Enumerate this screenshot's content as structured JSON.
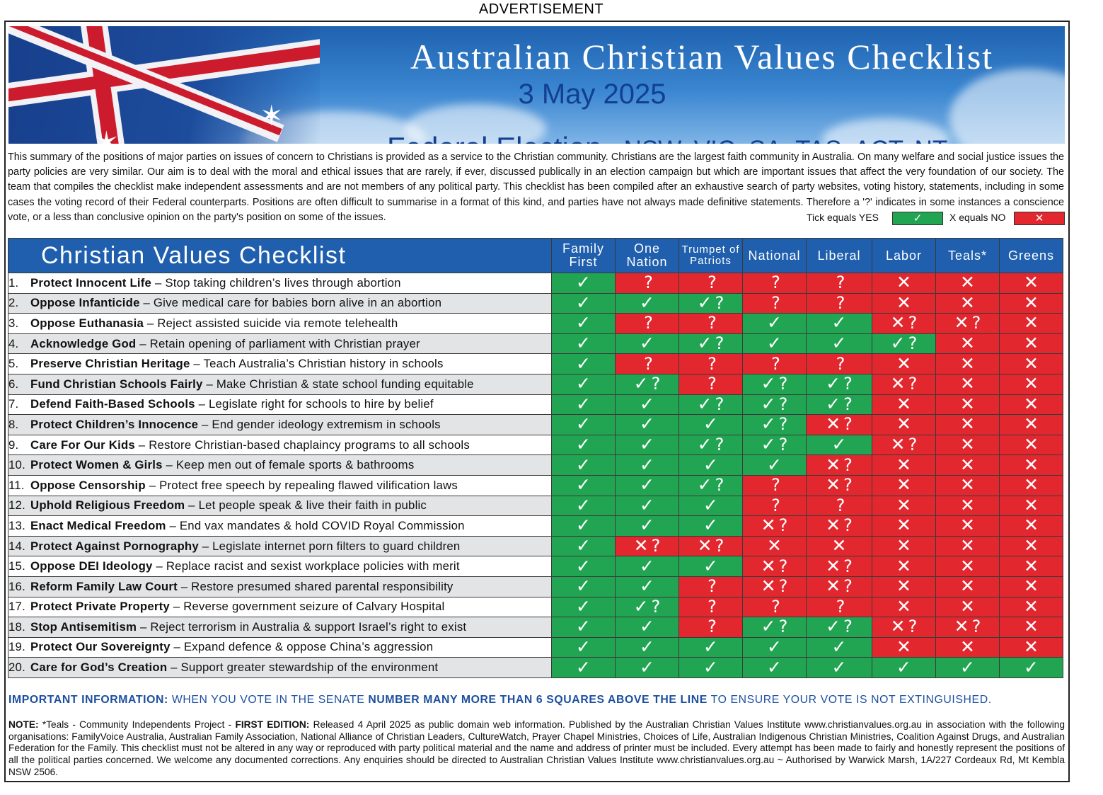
{
  "ad_label": "ADVERTISEMENT",
  "banner": {
    "title": "Australian Christian Values Checklist",
    "date": "3 May 2025",
    "election": "Federal Election",
    "regions": " - NSW, VIC, SA, TAS, ACT, NT"
  },
  "intro": "This summary of the positions of major parties on issues of concern to Christians is provided as a service to the Christian community. Christians are the largest faith community in Australia. On many welfare and social justice issues the party policies are very similar. Our aim is to deal with the moral and ethical issues that are rarely, if ever, discussed publically in an election campaign but which are important issues that affect the very foundation of our society. The team that compiles the checklist make independent assessments and are not members of any political party. This checklist has been compiled after an exhaustive search of party websites, voting history, statements, including in some cases the voting record of their Federal counterparts. Positions are often difficult to summarise in a format of this kind, and parties have not always made definitive statements. Therefore a '?' indicates in some instances a conscience vote, or a less than conclusive opinion on the party's position on some of the issues.",
  "legend": {
    "yes_label": "Tick equals YES",
    "yes_symbol": "✓",
    "no_label": "X equals NO",
    "no_symbol": "✕"
  },
  "table": {
    "title": "Christian Values Checklist",
    "parties": [
      {
        "line1": "Family",
        "line2": "First"
      },
      {
        "line1": "One",
        "line2": "Nation"
      },
      {
        "line1": "Trumpet of",
        "line2": "Patriots"
      },
      {
        "line1": "National",
        "line2": ""
      },
      {
        "line1": "Liberal",
        "line2": ""
      },
      {
        "line1": "Labor",
        "line2": ""
      },
      {
        "line1": "Teals*",
        "line2": ""
      },
      {
        "line1": "Greens",
        "line2": ""
      }
    ],
    "rows": [
      {
        "num": "1.",
        "title": "Protect Innocent Life",
        "desc": " – Stop taking children’s lives through abortion",
        "marks": [
          "Y",
          "?",
          "?",
          "?",
          "?",
          "N",
          "N",
          "N"
        ]
      },
      {
        "num": "2.",
        "title": "Oppose Infanticide",
        "desc": " – Give medical care for babies born alive in an abortion",
        "marks": [
          "Y",
          "Y",
          "Y?",
          "?",
          "?",
          "N",
          "N",
          "N"
        ]
      },
      {
        "num": "3.",
        "title": "Oppose Euthanasia",
        "desc": " – Reject assisted suicide via remote telehealth",
        "marks": [
          "Y",
          "?",
          "?",
          "Y",
          "Y",
          "N?",
          "N?",
          "N"
        ]
      },
      {
        "num": "4.",
        "title": "Acknowledge God",
        "desc": " – Retain opening of parliament with Christian prayer",
        "marks": [
          "Y",
          "Y",
          "Y?",
          "Y",
          "Y",
          "Y?",
          "N",
          "N"
        ]
      },
      {
        "num": "5.",
        "title": "Preserve Christian Heritage",
        "desc": " – Teach Australia’s Christian history in schools",
        "marks": [
          "Y",
          "?",
          "?",
          "?",
          "?",
          "N",
          "N",
          "N"
        ]
      },
      {
        "num": "6.",
        "title": "Fund Christian Schools Fairly",
        "desc": " – Make Christian & state school funding equitable",
        "marks": [
          "Y",
          "Y?",
          "?",
          "Y?",
          "Y?",
          "N?",
          "N",
          "N"
        ]
      },
      {
        "num": "7.",
        "title": "Defend Faith-Based Schools",
        "desc": " – Legislate right for schools to hire by belief",
        "marks": [
          "Y",
          "Y",
          "Y?",
          "Y?",
          "Y?",
          "N",
          "N",
          "N"
        ]
      },
      {
        "num": "8.",
        "title": "Protect Children’s Innocence",
        "desc": " – End gender ideology extremism in schools",
        "marks": [
          "Y",
          "Y",
          "Y",
          "Y?",
          "N?",
          "N",
          "N",
          "N"
        ]
      },
      {
        "num": "9.",
        "title": "Care For Our Kids",
        "desc": " – Restore Christian-based chaplaincy programs to all schools",
        "marks": [
          "Y",
          "Y",
          "Y?",
          "Y?",
          "Y",
          "N?",
          "N",
          "N"
        ]
      },
      {
        "num": "10.",
        "title": "Protect Women & Girls",
        "desc": " – Keep men out of female sports & bathrooms",
        "marks": [
          "Y",
          "Y",
          "Y",
          "Y",
          "N?",
          "N",
          "N",
          "N"
        ]
      },
      {
        "num": "11.",
        "title": "Oppose Censorship",
        "desc": " – Protect free speech by repealing flawed vilification laws",
        "marks": [
          "Y",
          "Y",
          "Y?",
          "?",
          "N?",
          "N",
          "N",
          "N"
        ]
      },
      {
        "num": "12.",
        "title": "Uphold Religious Freedom",
        "desc": " – Let people speak & live their faith in public",
        "marks": [
          "Y",
          "Y",
          "Y",
          "?",
          "?",
          "N",
          "N",
          "N"
        ]
      },
      {
        "num": "13.",
        "title": "Enact Medical Freedom",
        "desc": " – End vax mandates & hold COVID Royal Commission",
        "marks": [
          "Y",
          "Y",
          "Y",
          "N?",
          "N?",
          "N",
          "N",
          "N"
        ]
      },
      {
        "num": "14.",
        "title": "Protect Against Pornography",
        "desc": " – Legislate internet porn filters to guard children",
        "marks": [
          "Y",
          "N?",
          "N?",
          "N",
          "N",
          "N",
          "N",
          "N"
        ]
      },
      {
        "num": "15.",
        "title": "Oppose DEI Ideology",
        "desc": " – Replace racist and sexist workplace policies with merit",
        "marks": [
          "Y",
          "Y",
          "Y",
          "N?",
          "N?",
          "N",
          "N",
          "N"
        ]
      },
      {
        "num": "16.",
        "title": "Reform Family Law Court",
        "desc": " – Restore presumed shared parental responsibility",
        "marks": [
          "Y",
          "Y",
          "?",
          "N?",
          "N?",
          "N",
          "N",
          "N"
        ]
      },
      {
        "num": "17.",
        "title": "Protect Private Property",
        "desc": " – Reverse government seizure of Calvary Hospital",
        "marks": [
          "Y",
          "Y?",
          "?",
          "?",
          "?",
          "N",
          "N",
          "N"
        ]
      },
      {
        "num": "18.",
        "title": "Stop Antisemitism",
        "desc": " – Reject terrorism in Australia & support Israel’s right to exist",
        "marks": [
          "Y",
          "Y",
          "?",
          "Y?",
          "Y?",
          "N?",
          "N?",
          "N"
        ]
      },
      {
        "num": "19.",
        "title": "Protect Our Sovereignty",
        "desc": " – Expand defence & oppose China’s aggression",
        "marks": [
          "Y",
          "Y",
          "Y",
          "Y",
          "Y",
          "N",
          "N",
          "N"
        ]
      },
      {
        "num": "20.",
        "title": "Care for God’s Creation",
        "desc": " – Support greater stewardship of the environment",
        "marks": [
          "Y",
          "Y",
          "Y",
          "Y",
          "Y",
          "Y",
          "Y",
          "Y"
        ]
      }
    ]
  },
  "important": {
    "label": "IMPORTANT INFORMATION:",
    "text1": " WHEN YOU VOTE IN THE SENATE ",
    "emph": "NUMBER MANY MORE THAN 6 SQUARES ABOVE THE LINE",
    "text2": " TO ENSURE YOUR VOTE IS NOT EXTINGUISHED."
  },
  "note": {
    "label": "NOTE:",
    "text1": " *Teals - Community Independents Project - ",
    "edition": "FIRST EDITION:",
    "text2": " Released 4 April 2025 as public domain web information. Published by the Australian Christian Values Institute www.christianvalues.org.au in association with the following organisations: FamilyVoice Australia, Australian Family Association, National Alliance of Christian Leaders, CultureWatch, Prayer Chapel Ministries, Choices of Life, Australian Indigenous Christian Ministries, Coalition Against Drugs, and Australian Federation for the Family. This checklist must not be altered in any way or reproduced with party political material and the name and address of printer must be included. Every attempt has been made to fairly and honestly represent the positions of all the political parties concerned. We welcome any documented corrections. Any enquiries should be directed to Australian Christian Values Institute www.christianvalues.org.au ~ Authorised by Warwick Marsh, 1A/227 Cordeaux Rd, Mt Kembla NSW 2506."
  },
  "colors": {
    "yes": "#22a552",
    "no": "#e2272f",
    "header_blue": "#1f5fae",
    "title_blue": "#123f8f"
  }
}
